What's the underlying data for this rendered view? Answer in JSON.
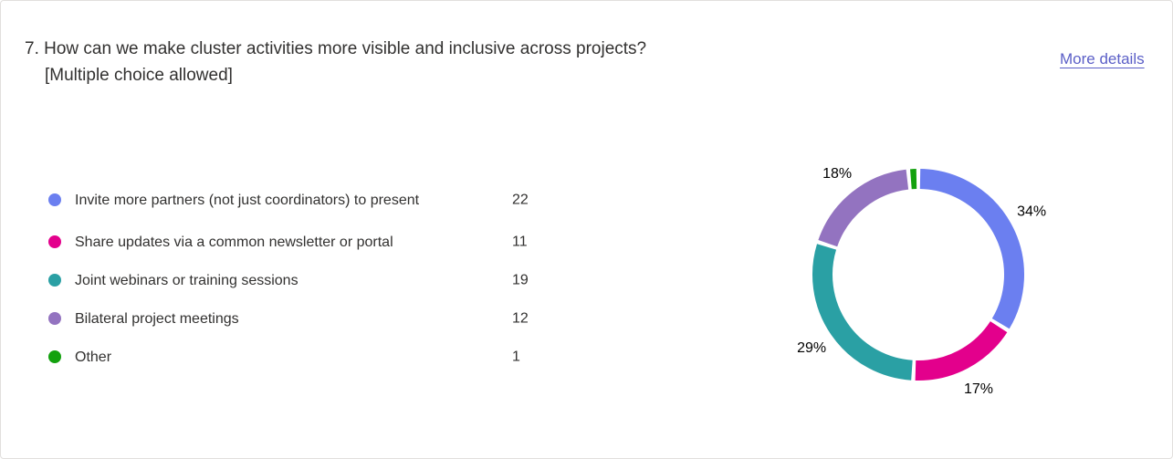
{
  "question": {
    "text": "7. How can we make cluster activities more visible and inclusive across projects?",
    "subtext": "[Multiple choice allowed]"
  },
  "more_details_label": "More details",
  "chart_data": {
    "type": "pie",
    "style": "donut",
    "categories": [
      "Invite more partners (not just coordinators) to present",
      "Share updates via a common newsletter or portal",
      "Joint webinars or training sessions",
      "Bilateral project meetings",
      "Other"
    ],
    "values": [
      22,
      11,
      19,
      12,
      1
    ],
    "percent_labels": [
      "34%",
      "17%",
      "29%",
      "18%",
      ""
    ],
    "colors": [
      "#6b7ff0",
      "#e3008c",
      "#2aa0a4",
      "#9373c0",
      "#13a10e"
    ],
    "legend_position": "left"
  }
}
